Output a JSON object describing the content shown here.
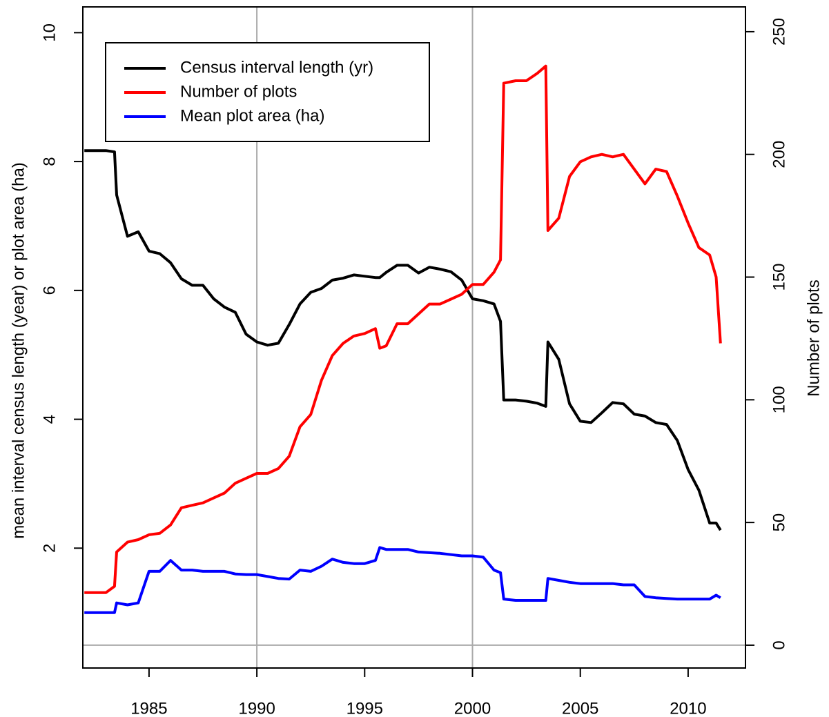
{
  "chart_data": {
    "type": "line",
    "x": [
      1982.0,
      1982.5,
      1983.0,
      1983.4,
      1983.5,
      1984.0,
      1984.5,
      1985.0,
      1985.5,
      1986.0,
      1986.5,
      1987.0,
      1987.5,
      1988.0,
      1988.5,
      1989.0,
      1989.5,
      1990.0,
      1990.5,
      1991.0,
      1991.5,
      1992.0,
      1992.5,
      1993.0,
      1993.5,
      1994.0,
      1994.5,
      1995.0,
      1995.5,
      1995.7,
      1996.0,
      1996.5,
      1997.0,
      1997.5,
      1998.0,
      1998.5,
      1999.0,
      1999.5,
      2000.0,
      2000.5,
      2001.0,
      2001.3,
      2001.45,
      2002.0,
      2002.5,
      2003.0,
      2003.4,
      2003.5,
      2004.0,
      2004.5,
      2005.0,
      2005.5,
      2006.0,
      2006.5,
      2007.0,
      2007.5,
      2008.0,
      2008.5,
      2009.0,
      2009.5,
      2010.0,
      2010.5,
      2011.0,
      2011.3,
      2011.5
    ],
    "series": [
      {
        "name": "Census interval length (yr)",
        "color": "#000000",
        "axis": "y",
        "values": [
          8.17,
          8.17,
          8.17,
          8.15,
          7.48,
          6.84,
          6.91,
          6.61,
          6.57,
          6.43,
          6.18,
          6.08,
          6.08,
          5.87,
          5.74,
          5.66,
          5.32,
          5.2,
          5.15,
          5.18,
          5.47,
          5.79,
          5.97,
          6.03,
          6.16,
          6.19,
          6.24,
          6.22,
          6.2,
          6.2,
          6.28,
          6.39,
          6.39,
          6.27,
          6.36,
          6.33,
          6.29,
          6.16,
          5.87,
          5.84,
          5.79,
          5.52,
          4.3,
          4.3,
          4.28,
          4.25,
          4.2,
          5.2,
          4.93,
          4.24,
          3.97,
          3.95,
          4.1,
          4.26,
          4.24,
          4.08,
          4.05,
          3.95,
          3.92,
          3.67,
          3.22,
          2.9,
          2.39,
          2.39,
          2.28
        ]
      },
      {
        "name": "Number of plots",
        "color": "#ff0000",
        "axis": "y2",
        "values": [
          21.4,
          21.4,
          21.4,
          24,
          38,
          42,
          43,
          45,
          45.6,
          49,
          56,
          57,
          58,
          60,
          62,
          66,
          68,
          70,
          70,
          72,
          77,
          89,
          94,
          108,
          118,
          123,
          126,
          127,
          129,
          121,
          122,
          131,
          131,
          135,
          139,
          139,
          141,
          143,
          147,
          147,
          152,
          157,
          229,
          230,
          230,
          233,
          236,
          169,
          174,
          191,
          197,
          199,
          200,
          199,
          200,
          194,
          188,
          194,
          193,
          183,
          172,
          162,
          159,
          150,
          123
        ]
      },
      {
        "name": "Mean plot area (ha)",
        "color": "#0000ff",
        "axis": "y",
        "values": [
          1.0,
          1.0,
          1.0,
          1.0,
          1.15,
          1.12,
          1.15,
          1.64,
          1.64,
          1.81,
          1.66,
          1.66,
          1.64,
          1.64,
          1.64,
          1.6,
          1.59,
          1.59,
          1.56,
          1.53,
          1.52,
          1.66,
          1.64,
          1.72,
          1.83,
          1.78,
          1.76,
          1.76,
          1.81,
          2.01,
          1.98,
          1.98,
          1.98,
          1.94,
          1.93,
          1.92,
          1.9,
          1.88,
          1.88,
          1.86,
          1.66,
          1.62,
          1.21,
          1.19,
          1.19,
          1.19,
          1.19,
          1.53,
          1.5,
          1.47,
          1.45,
          1.45,
          1.45,
          1.45,
          1.43,
          1.43,
          1.25,
          1.23,
          1.22,
          1.21,
          1.21,
          1.21,
          1.21,
          1.27,
          1.23
        ]
      }
    ],
    "xlim": [
      1981.93,
      2012.66
    ],
    "xticks": [
      1985,
      1990,
      1995,
      2000,
      2005,
      2010
    ],
    "ylim": [
      0.14,
      10.4
    ],
    "yticks": [
      2,
      4,
      6,
      8,
      10
    ],
    "y2lim": [
      -9.3,
      260.1
    ],
    "y2ticks": [
      0,
      50,
      100,
      150,
      200,
      250
    ],
    "ylabel": "mean interval census length (year) or plot area (ha)",
    "y2label": "Number of plots",
    "vlines": [
      1990,
      2000
    ],
    "y2hlines": [
      0
    ],
    "legend": "top-left"
  }
}
